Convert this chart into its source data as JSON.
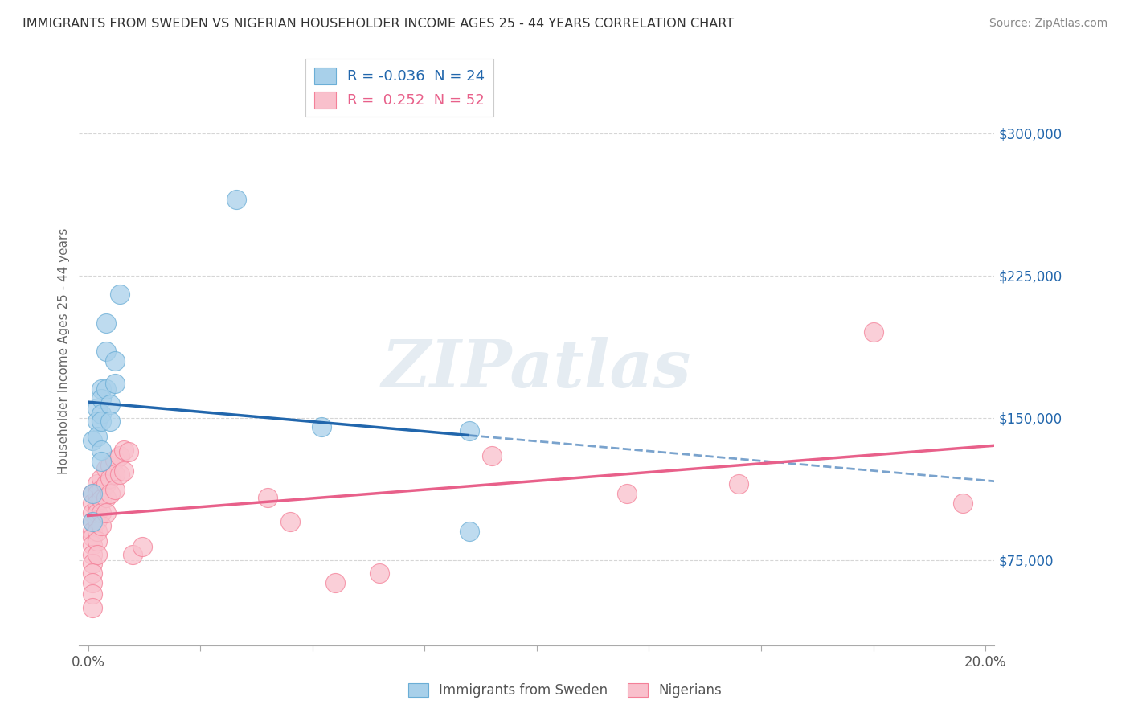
{
  "title": "IMMIGRANTS FROM SWEDEN VS NIGERIAN HOUSEHOLDER INCOME AGES 25 - 44 YEARS CORRELATION CHART",
  "source": "Source: ZipAtlas.com",
  "ylabel": "Householder Income Ages 25 - 44 years",
  "ylim": [
    30000,
    340000
  ],
  "xlim": [
    -0.002,
    0.202
  ],
  "y_ticks": [
    75000,
    150000,
    225000,
    300000
  ],
  "y_tick_labels": [
    "$75,000",
    "$150,000",
    "$225,000",
    "$300,000"
  ],
  "x_ticks": [
    0.0,
    0.025,
    0.05,
    0.075,
    0.1,
    0.125,
    0.15,
    0.175,
    0.2
  ],
  "sweden_R": -0.036,
  "sweden_N": 24,
  "nigeria_R": 0.252,
  "nigeria_N": 52,
  "sweden_color": "#a8d0ea",
  "sweden_edge_color": "#6baed6",
  "nigeria_color": "#f9c0cc",
  "nigeria_edge_color": "#f48098",
  "sweden_line_color": "#2166ac",
  "nigeria_line_color": "#e8608a",
  "watermark": "ZIPatlas",
  "legend_label_sweden": "Immigrants from Sweden",
  "legend_label_nigeria": "Nigerians",
  "sweden_x": [
    0.001,
    0.001,
    0.001,
    0.002,
    0.002,
    0.002,
    0.003,
    0.003,
    0.003,
    0.003,
    0.003,
    0.003,
    0.004,
    0.004,
    0.004,
    0.005,
    0.005,
    0.006,
    0.006,
    0.007,
    0.033,
    0.052,
    0.085,
    0.085
  ],
  "sweden_y": [
    138000,
    110000,
    95000,
    155000,
    148000,
    140000,
    165000,
    160000,
    152000,
    148000,
    133000,
    127000,
    200000,
    185000,
    165000,
    157000,
    148000,
    180000,
    168000,
    215000,
    265000,
    145000,
    143000,
    90000
  ],
  "nigeria_x": [
    0.001,
    0.001,
    0.001,
    0.001,
    0.001,
    0.001,
    0.001,
    0.001,
    0.001,
    0.001,
    0.001,
    0.001,
    0.001,
    0.002,
    0.002,
    0.002,
    0.002,
    0.002,
    0.002,
    0.002,
    0.002,
    0.003,
    0.003,
    0.003,
    0.003,
    0.003,
    0.004,
    0.004,
    0.004,
    0.004,
    0.005,
    0.005,
    0.005,
    0.006,
    0.006,
    0.006,
    0.007,
    0.007,
    0.008,
    0.008,
    0.009,
    0.01,
    0.012,
    0.04,
    0.045,
    0.055,
    0.065,
    0.09,
    0.12,
    0.145,
    0.175,
    0.195
  ],
  "nigeria_y": [
    110000,
    105000,
    100000,
    95000,
    90000,
    87000,
    83000,
    78000,
    73000,
    68000,
    63000,
    57000,
    50000,
    115000,
    110000,
    105000,
    100000,
    96000,
    90000,
    85000,
    78000,
    118000,
    112000,
    107000,
    100000,
    93000,
    123000,
    115000,
    108000,
    100000,
    125000,
    118000,
    110000,
    128000,
    120000,
    112000,
    130000,
    120000,
    133000,
    122000,
    132000,
    78000,
    82000,
    108000,
    95000,
    63000,
    68000,
    130000,
    110000,
    115000,
    195000,
    105000
  ]
}
